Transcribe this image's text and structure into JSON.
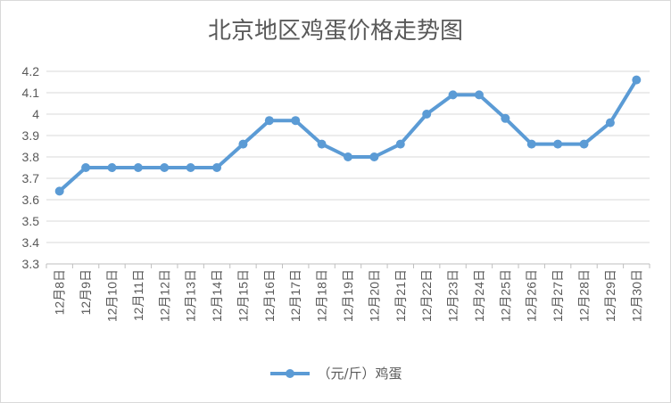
{
  "chart_data": {
    "type": "line",
    "title": "北京地区鸡蛋价格走势图",
    "xlabel": "",
    "ylabel": "",
    "categories": [
      "12月8日",
      "12月9日",
      "12月10日",
      "12月11日",
      "12月12日",
      "12月13日",
      "12月14日",
      "12月15日",
      "12月16日",
      "12月17日",
      "12月18日",
      "12月19日",
      "12月20日",
      "12月21日",
      "12月22日",
      "12月23日",
      "12月24日",
      "12月25日",
      "12月26日",
      "12月27日",
      "12月28日",
      "12月29日",
      "12月30日"
    ],
    "series": [
      {
        "name": "（元/斤）鸡蛋",
        "color": "#5b9bd5",
        "values": [
          3.64,
          3.75,
          3.75,
          3.75,
          3.75,
          3.75,
          3.75,
          3.86,
          3.97,
          3.97,
          3.86,
          3.8,
          3.8,
          3.86,
          4.0,
          4.09,
          4.09,
          3.98,
          3.86,
          3.86,
          3.86,
          3.96,
          4.16
        ]
      }
    ],
    "ylim": [
      3.3,
      4.2
    ],
    "yticks": [
      "3.3",
      "3.4",
      "3.5",
      "3.6",
      "3.7",
      "3.8",
      "3.9",
      "4",
      "4.1",
      "4.2"
    ],
    "grid": true,
    "legend_position": "bottom"
  }
}
